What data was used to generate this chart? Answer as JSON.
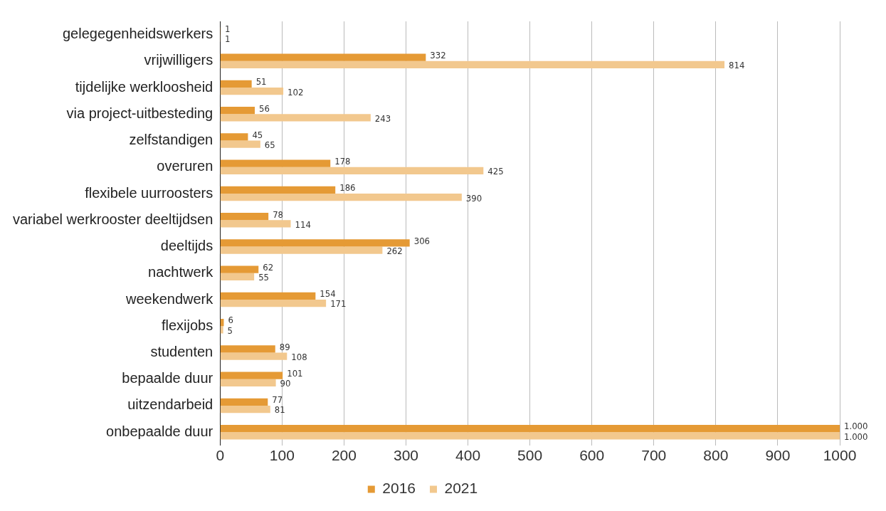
{
  "chart_data": {
    "type": "bar",
    "orientation": "horizontal",
    "categories": [
      "gelegegenheidswerkers",
      "vrijwilligers",
      "tijdelijke werkloosheid",
      "via project-uitbesteding",
      "zelfstandigen",
      "overuren",
      "flexibele uurroosters",
      "variabel werkrooster deeltijdsen",
      "deeltijds",
      "nachtwerk",
      "weekendwerk",
      "flexijobs",
      "studenten",
      "bepaalde duur",
      "uitzendarbeid",
      "onbepaalde duur"
    ],
    "series": [
      {
        "name": "2016",
        "color": "#e59a35",
        "values": [
          1,
          332,
          51,
          56,
          45,
          178,
          186,
          78,
          306,
          62,
          154,
          6,
          89,
          101,
          77,
          1000
        ],
        "value_labels": [
          "1",
          "332",
          "51",
          "56",
          "45",
          "178",
          "186",
          "78",
          "306",
          "62",
          "154",
          "6",
          "89",
          "101",
          "77",
          "1.000"
        ]
      },
      {
        "name": "2021",
        "color": "#f2c88e",
        "values": [
          1,
          814,
          102,
          243,
          65,
          425,
          390,
          114,
          262,
          55,
          171,
          5,
          108,
          90,
          81,
          1000
        ],
        "value_labels": [
          "1",
          "814",
          "102",
          "243",
          "65",
          "425",
          "390",
          "114",
          "262",
          "55",
          "171",
          "5",
          "108",
          "90",
          "81",
          "1.000"
        ]
      }
    ],
    "xlim": [
      0,
      1000
    ],
    "xticks": [
      0,
      100,
      200,
      300,
      400,
      500,
      600,
      700,
      800,
      900,
      1000
    ],
    "grid": "x",
    "legend": "bottom"
  }
}
